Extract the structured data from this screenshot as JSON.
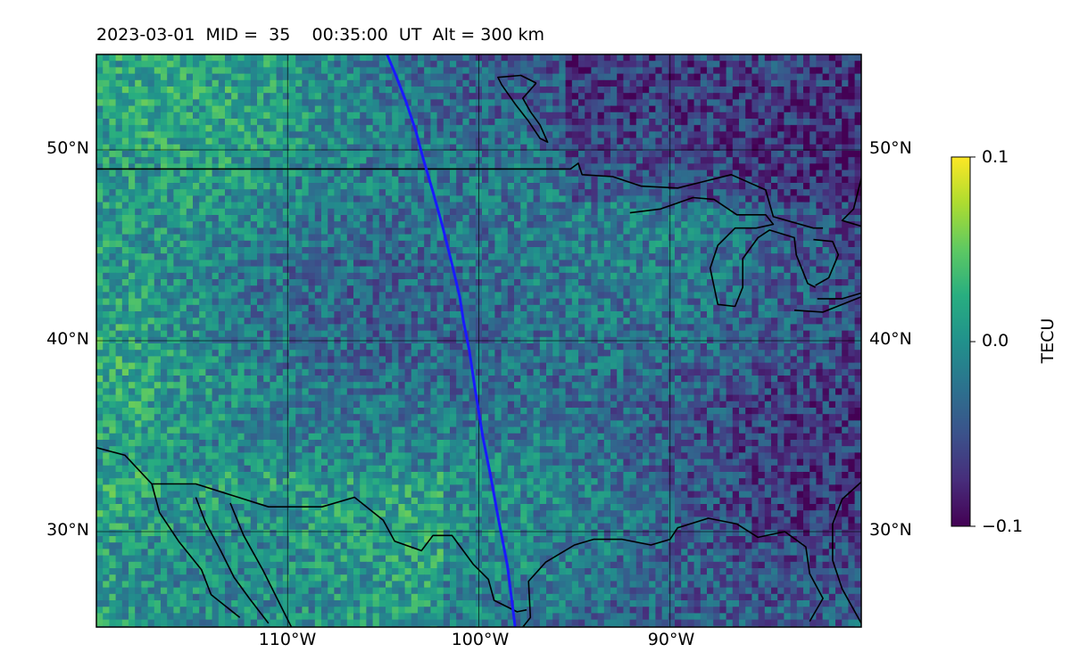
{
  "title": "2023-03-01  MID =  35    00:35:00  UT  Alt = 300 km",
  "map": {
    "lon_range": [
      -120,
      -80
    ],
    "lat_range": [
      25,
      55
    ],
    "lat_ticks": [
      {
        "value": 50,
        "label": "50°N"
      },
      {
        "value": 40,
        "label": "40°N"
      },
      {
        "value": 30,
        "label": "30°N"
      }
    ],
    "lon_ticks": [
      {
        "value": -110,
        "label": "110°W"
      },
      {
        "value": -100,
        "label": "100°W"
      },
      {
        "value": -90,
        "label": "90°W"
      }
    ],
    "gridlines": true,
    "satellite_track_color": "#1a1aff",
    "satellite_track": [
      [
        -104.8,
        55
      ],
      [
        -104.3,
        53.8
      ],
      [
        -103.8,
        52.5
      ],
      [
        -103.3,
        51.0
      ],
      [
        -102.9,
        49.5
      ],
      [
        -102.4,
        47.8
      ],
      [
        -101.9,
        46.0
      ],
      [
        -101.4,
        44.0
      ],
      [
        -101.0,
        42.3
      ],
      [
        -100.8,
        41.0
      ],
      [
        -100.5,
        39.5
      ],
      [
        -100.2,
        37.5
      ],
      [
        -99.8,
        35.0
      ],
      [
        -99.4,
        33.0
      ],
      [
        -99.0,
        30.8
      ],
      [
        -98.5,
        28.2
      ],
      [
        -98.1,
        25.0
      ]
    ],
    "coastlines": [
      [
        [
          -120,
          49.0
        ],
        [
          -95.2,
          49.0
        ],
        [
          -94.8,
          49.3
        ],
        [
          -94.6,
          48.7
        ],
        [
          -93.0,
          48.6
        ],
        [
          -91.5,
          48.1
        ],
        [
          -89.6,
          48.0
        ],
        [
          -88.4,
          48.3
        ],
        [
          -86.8,
          48.7
        ],
        [
          -85.0,
          47.9
        ],
        [
          -84.6,
          46.5
        ],
        [
          -82.5,
          45.9
        ],
        [
          -82.0,
          45.9
        ]
      ],
      [
        [
          -92.1,
          46.7
        ],
        [
          -90.5,
          46.9
        ],
        [
          -88.8,
          47.5
        ],
        [
          -87.7,
          47.4
        ],
        [
          -86.5,
          46.6
        ],
        [
          -85.0,
          46.6
        ],
        [
          -84.6,
          46.1
        ],
        [
          -85.5,
          45.9
        ],
        [
          -86.6,
          45.9
        ],
        [
          -87.5,
          45.0
        ],
        [
          -87.9,
          43.8
        ],
        [
          -87.5,
          41.9
        ],
        [
          -86.6,
          41.8
        ],
        [
          -86.2,
          42.8
        ],
        [
          -86.2,
          44.3
        ],
        [
          -85.4,
          45.4
        ],
        [
          -84.8,
          45.8
        ],
        [
          -83.5,
          45.4
        ],
        [
          -83.4,
          44.5
        ],
        [
          -82.8,
          43.0
        ],
        [
          -82.4,
          42.8
        ]
      ],
      [
        [
          -82.5,
          45.3
        ],
        [
          -81.5,
          45.2
        ],
        [
          -81.2,
          44.5
        ],
        [
          -81.7,
          43.3
        ],
        [
          -82.4,
          42.9
        ]
      ],
      [
        [
          -82.3,
          42.2
        ],
        [
          -81.0,
          42.2
        ],
        [
          -80.0,
          42.5
        ]
      ],
      [
        [
          -83.5,
          41.6
        ],
        [
          -82.0,
          41.5
        ],
        [
          -80.0,
          42.3
        ]
      ],
      [
        [
          -97.0,
          53.5
        ],
        [
          -97.7,
          52.7
        ],
        [
          -97.3,
          52.0
        ],
        [
          -96.8,
          51.3
        ],
        [
          -96.4,
          50.4
        ],
        [
          -96.8,
          50.6
        ],
        [
          -97.4,
          51.5
        ],
        [
          -98.1,
          52.4
        ],
        [
          -98.8,
          53.4
        ],
        [
          -99.0,
          53.8
        ],
        [
          -97.8,
          53.9
        ],
        [
          -97.0,
          53.5
        ]
      ],
      [
        [
          -80.0,
          46.0
        ],
        [
          -81.0,
          46.3
        ],
        [
          -80.4,
          46.9
        ],
        [
          -80.0,
          48.5
        ]
      ],
      [
        [
          -80.0,
          32.6
        ],
        [
          -81.0,
          31.7
        ],
        [
          -81.5,
          30.4
        ],
        [
          -81.5,
          28.5
        ],
        [
          -81.0,
          27.0
        ],
        [
          -80.0,
          25.2
        ]
      ],
      [
        [
          -82.7,
          25.3
        ],
        [
          -82.0,
          26.5
        ],
        [
          -82.7,
          27.8
        ],
        [
          -82.9,
          29.2
        ],
        [
          -84.0,
          30.0
        ],
        [
          -85.4,
          29.7
        ],
        [
          -86.5,
          30.4
        ],
        [
          -88.0,
          30.7
        ],
        [
          -89.6,
          30.2
        ],
        [
          -90.0,
          29.6
        ],
        [
          -91.0,
          29.3
        ],
        [
          -92.5,
          29.6
        ],
        [
          -94.0,
          29.6
        ],
        [
          -95.0,
          29.3
        ],
        [
          -96.5,
          28.4
        ],
        [
          -97.4,
          27.4
        ],
        [
          -97.3,
          25.5
        ],
        [
          -97.7,
          25.0
        ]
      ],
      [
        [
          -120,
          34.4
        ],
        [
          -118.5,
          34.0
        ],
        [
          -117.1,
          32.5
        ],
        [
          -114.8,
          32.5
        ],
        [
          -111.0,
          31.3
        ],
        [
          -108.2,
          31.3
        ],
        [
          -106.5,
          31.8
        ],
        [
          -105.0,
          30.6
        ],
        [
          -104.4,
          29.5
        ],
        [
          -103.0,
          29.0
        ],
        [
          -102.4,
          29.8
        ],
        [
          -101.4,
          29.8
        ],
        [
          -100.3,
          28.3
        ],
        [
          -99.5,
          27.5
        ],
        [
          -99.2,
          26.4
        ],
        [
          -98.0,
          25.8
        ],
        [
          -97.5,
          25.9
        ]
      ],
      [
        [
          -117.1,
          32.5
        ],
        [
          -116.7,
          31.0
        ],
        [
          -115.7,
          29.5
        ],
        [
          -114.5,
          28.0
        ],
        [
          -114.0,
          26.7
        ],
        [
          -112.5,
          25.5
        ]
      ],
      [
        [
          -114.8,
          31.8
        ],
        [
          -114.3,
          30.5
        ],
        [
          -113.5,
          29.0
        ],
        [
          -112.8,
          27.6
        ],
        [
          -112.0,
          26.5
        ],
        [
          -111.0,
          25.2
        ]
      ],
      [
        [
          -113.0,
          31.5
        ],
        [
          -112.3,
          29.8
        ],
        [
          -111.3,
          28.0
        ],
        [
          -110.3,
          26.0
        ],
        [
          -109.8,
          25.0
        ]
      ]
    ]
  },
  "colorbar": {
    "label": "TECU",
    "vmin": -0.1,
    "vmax": 0.1,
    "ticks": [
      {
        "value": 0.1,
        "label": "0.1"
      },
      {
        "value": 0.0,
        "label": "0.0"
      },
      {
        "value": -0.1,
        "label": "−0.1"
      }
    ],
    "colormap": [
      "#440154",
      "#472d7b",
      "#3b528b",
      "#2c728e",
      "#21918c",
      "#28ae80",
      "#5ec962",
      "#addc30",
      "#fde725"
    ]
  }
}
